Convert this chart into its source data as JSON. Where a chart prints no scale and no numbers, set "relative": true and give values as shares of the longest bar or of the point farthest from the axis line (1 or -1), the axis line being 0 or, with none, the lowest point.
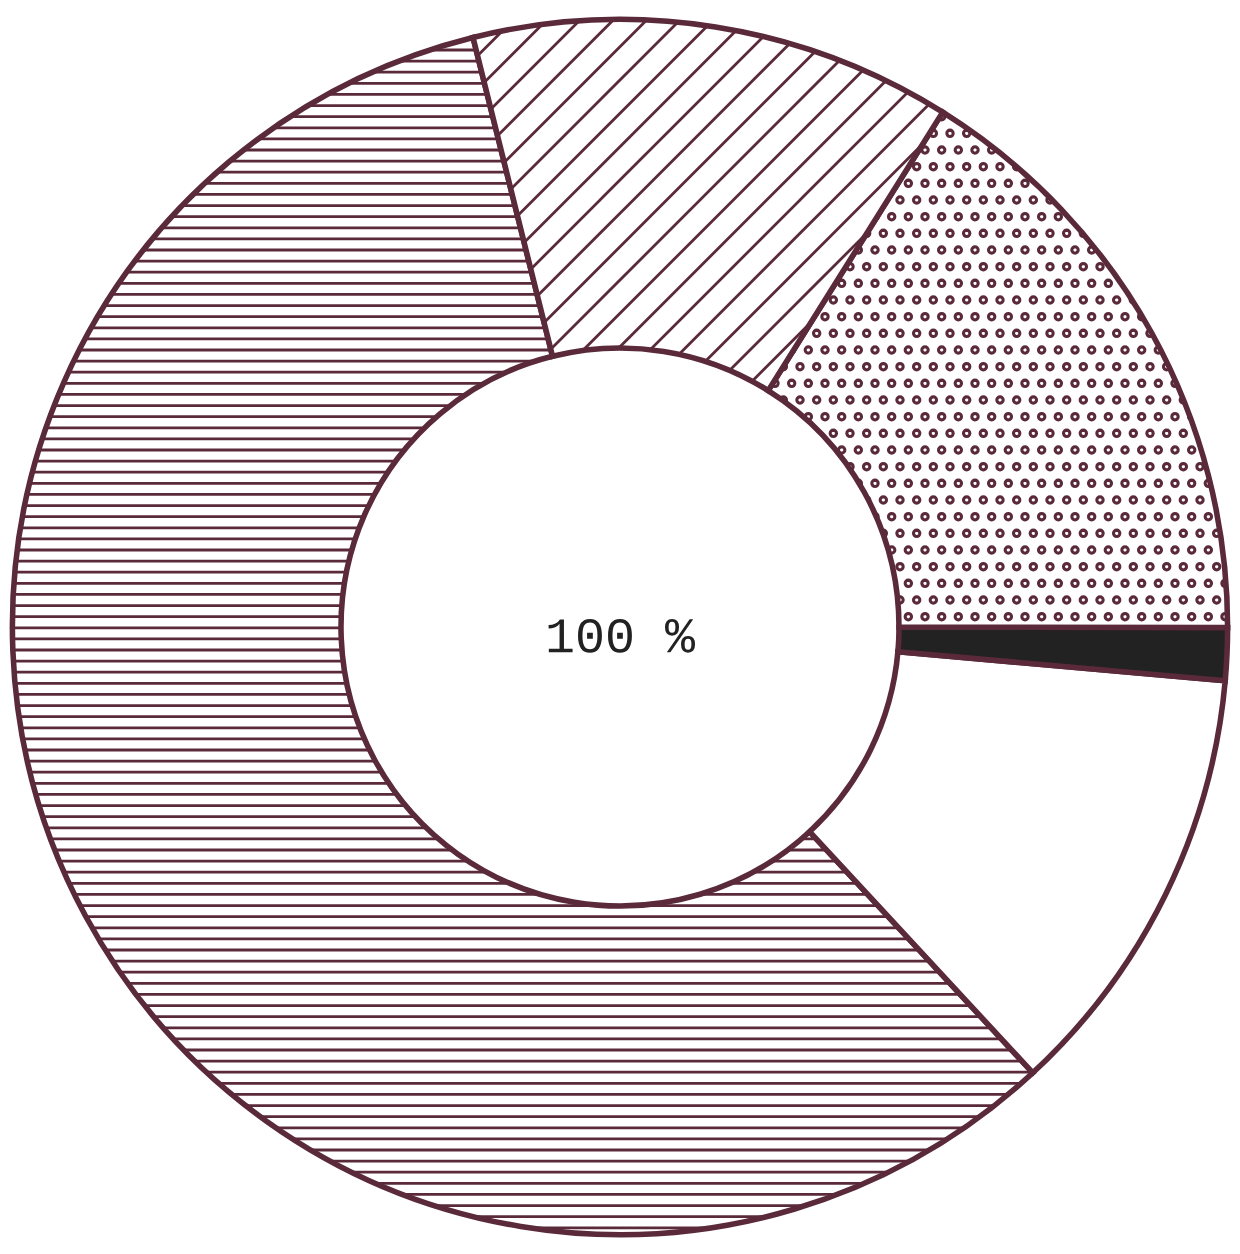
{
  "chart_data": {
    "type": "donut",
    "relative": true,
    "categories": [
      null,
      null,
      null,
      null,
      null
    ],
    "values": [
      58.0,
      11.7,
      1.4,
      16.1,
      12.8
    ],
    "colors": [
      "#5a2a3a",
      "#ffffff",
      "#222222",
      "#5a2a3a",
      "#5a2a3a"
    ],
    "annotations": [
      "100 %"
    ]
  }
}
